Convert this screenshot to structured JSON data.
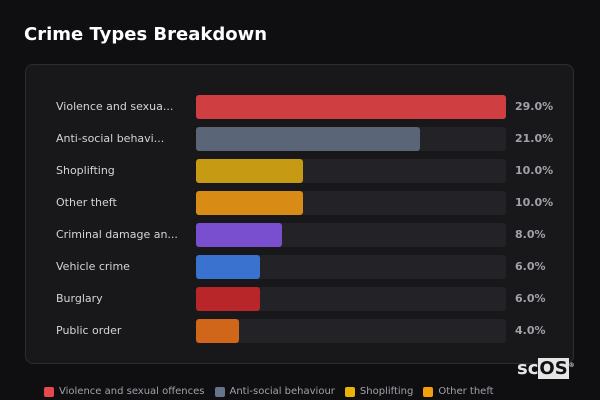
{
  "title": "Crime Types Breakdown",
  "chart_data": {
    "type": "bar",
    "orientation": "horizontal",
    "title": "Crime Types Breakdown",
    "categories": [
      "Violence and sexua...",
      "Anti-social behavi...",
      "Shoplifting",
      "Other theft",
      "Criminal damage an...",
      "Vehicle crime",
      "Burglary",
      "Public order"
    ],
    "values": [
      29.0,
      21.0,
      10.0,
      10.0,
      8.0,
      6.0,
      6.0,
      4.0
    ],
    "value_labels": [
      "29.0%",
      "21.0%",
      "10.0%",
      "10.0%",
      "8.0%",
      "6.0%",
      "6.0%",
      "4.0%"
    ],
    "colors": [
      "#cf3f42",
      "#5a6577",
      "#c69a12",
      "#d88c16",
      "#7a4fcf",
      "#3a72d0",
      "#b8262a",
      "#d0661a"
    ],
    "xlim": [
      0,
      29
    ],
    "grid": false,
    "legend_position": "bottom"
  },
  "legend": [
    {
      "label": "Violence and sexual offences",
      "color": "#e5484d"
    },
    {
      "label": "Anti-social behaviour",
      "color": "#64748b"
    },
    {
      "label": "Shoplifting",
      "color": "#eab308"
    },
    {
      "label": "Other theft",
      "color": "#f59e0b"
    }
  ],
  "logo": {
    "text_a": "sc",
    "text_b": "OS",
    "mark": "®"
  }
}
